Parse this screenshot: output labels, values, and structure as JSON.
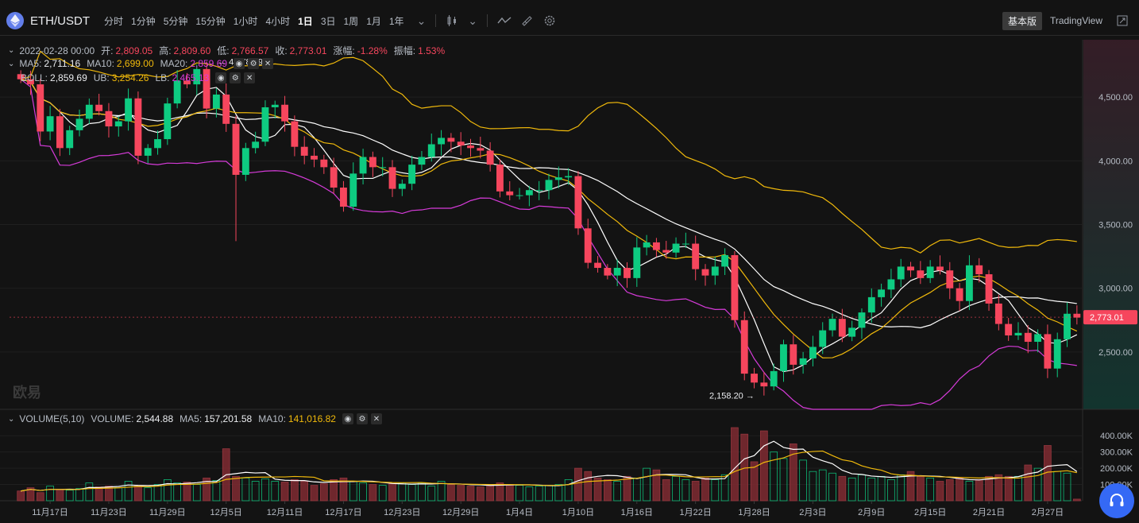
{
  "header": {
    "pair": "ETH/USDT",
    "timeframes": [
      "分时",
      "1分钟",
      "5分钟",
      "15分钟",
      "1小时",
      "4小时",
      "1日",
      "3日",
      "1周",
      "1月",
      "1年"
    ],
    "active_timeframe": "1日",
    "basic_label": "基本版",
    "tradingview_label": "TradingView"
  },
  "ohlc": {
    "date": "2022-02-28 00:00",
    "open_label": "开:",
    "open": "2,809.05",
    "high_label": "高:",
    "high": "2,809.60",
    "low_label": "低:",
    "low": "2,766.57",
    "close_label": "收:",
    "close": "2,773.01",
    "change_label": "涨幅:",
    "change": "-1.28%",
    "amp_label": "振幅:",
    "amp": "1.53%"
  },
  "ma": {
    "ma5_label": "MA5:",
    "ma5": "2,711.16",
    "ma10_label": "MA10:",
    "ma10": "2,699.00",
    "ma20_label": "MA20:",
    "ma20": "2,859.69"
  },
  "boll": {
    "label": "BOLL:",
    "value": "2,859.69",
    "ub_label": "UB:",
    "ub": "3,254.26",
    "lb_label": "LB:",
    "lb": "2,465.13"
  },
  "volume_legend": {
    "label": "VOLUME(5,10)",
    "vol_label": "VOLUME:",
    "vol": "2,544.88",
    "ma5_label": "MA5:",
    "ma5": "157,201.58",
    "ma10_label": "MA10:",
    "ma10": "141,016.82"
  },
  "annotations": {
    "high": "4,778.79",
    "low": "2,158.20"
  },
  "last_price_tag": "2,773.01",
  "watermark": "欧易",
  "colors": {
    "up": "#0ecb81",
    "down": "#f6465d",
    "ma5": "#ffffff",
    "ma10": "#f0b90b",
    "ma20": "#d63bd9",
    "support": "#3569f5"
  },
  "chart_data": {
    "type": "candlestick",
    "price_axis": {
      "ylim": [
        2050,
        4950
      ],
      "ticks": [
        2500,
        3000,
        3500,
        4000,
        4500
      ],
      "tick_labels": [
        "2,500.00",
        "3,000.00",
        "3,500.00",
        "4,000.00",
        "4,500.00"
      ]
    },
    "volume_axis": {
      "ylim": [
        0,
        450000
      ],
      "ticks": [
        100000,
        200000,
        300000,
        400000
      ],
      "tick_labels": [
        "100.00K",
        "200.00K",
        "300.00K",
        "400.00K"
      ]
    },
    "x_tick_labels": [
      "11月17日",
      "11月23日",
      "11月29日",
      "12月5日",
      "12月11日",
      "12月17日",
      "12月23日",
      "12月29日",
      "1月4日",
      "1月10日",
      "1月16日",
      "1月22日",
      "1月28日",
      "2月3日",
      "2月9日",
      "2月15日",
      "2月21日",
      "2月27日"
    ],
    "close": [
      4640,
      4600,
      4230,
      4350,
      4100,
      4240,
      4330,
      4440,
      4390,
      4270,
      4310,
      4490,
      4040,
      4100,
      4170,
      4450,
      4630,
      4600,
      4720,
      4410,
      4520,
      4290,
      3890,
      4100,
      4150,
      4420,
      4440,
      4310,
      4110,
      4040,
      4010,
      3950,
      3790,
      3640,
      3900,
      4030,
      3950,
      3950,
      3780,
      3820,
      3970,
      4030,
      4130,
      4180,
      4150,
      4120,
      4100,
      4080,
      3970,
      3760,
      3730,
      3730,
      3770,
      3770,
      3850,
      3870,
      3880,
      3470,
      3200,
      3160,
      3100,
      3160,
      3080,
      3320,
      3360,
      3300,
      3280,
      3350,
      3350,
      3150,
      3100,
      3170,
      3260,
      2750,
      2330,
      2260,
      2230,
      2350,
      2560,
      2400,
      2450,
      2540,
      2670,
      2760,
      2620,
      2690,
      2810,
      2930,
      2990,
      3070,
      3170,
      3140,
      3080,
      3170,
      3140,
      3000,
      2900,
      3180,
      3110,
      2880,
      2720,
      2630,
      2650,
      2580,
      2640,
      2370,
      2600,
      2800,
      2770
    ],
    "volume": [
      60000,
      80000,
      50000,
      90000,
      70000,
      65000,
      75000,
      110000,
      85000,
      90000,
      80000,
      120000,
      95000,
      80000,
      100000,
      130000,
      110000,
      115000,
      100000,
      140000,
      125000,
      320000,
      150000,
      140000,
      120000,
      135000,
      120000,
      115000,
      130000,
      120000,
      95000,
      105000,
      130000,
      140000,
      120000,
      110000,
      100000,
      95000,
      105000,
      110000,
      100000,
      110000,
      90000,
      120000,
      100000,
      95000,
      90000,
      85000,
      100000,
      110000,
      100000,
      95000,
      85000,
      90000,
      95000,
      100000,
      130000,
      200000,
      180000,
      140000,
      130000,
      120000,
      150000,
      140000,
      200000,
      190000,
      130000,
      150000,
      130000,
      120000,
      140000,
      130000,
      160000,
      450000,
      410000,
      240000,
      430000,
      300000,
      260000,
      350000,
      250000,
      180000,
      190000,
      170000,
      150000,
      140000,
      160000,
      140000,
      150000,
      130000,
      160000,
      180000,
      150000,
      140000,
      120000,
      130000,
      140000,
      120000,
      130000,
      150000,
      160000,
      150000,
      150000,
      220000,
      200000,
      340000,
      180000,
      170000,
      10000
    ]
  }
}
